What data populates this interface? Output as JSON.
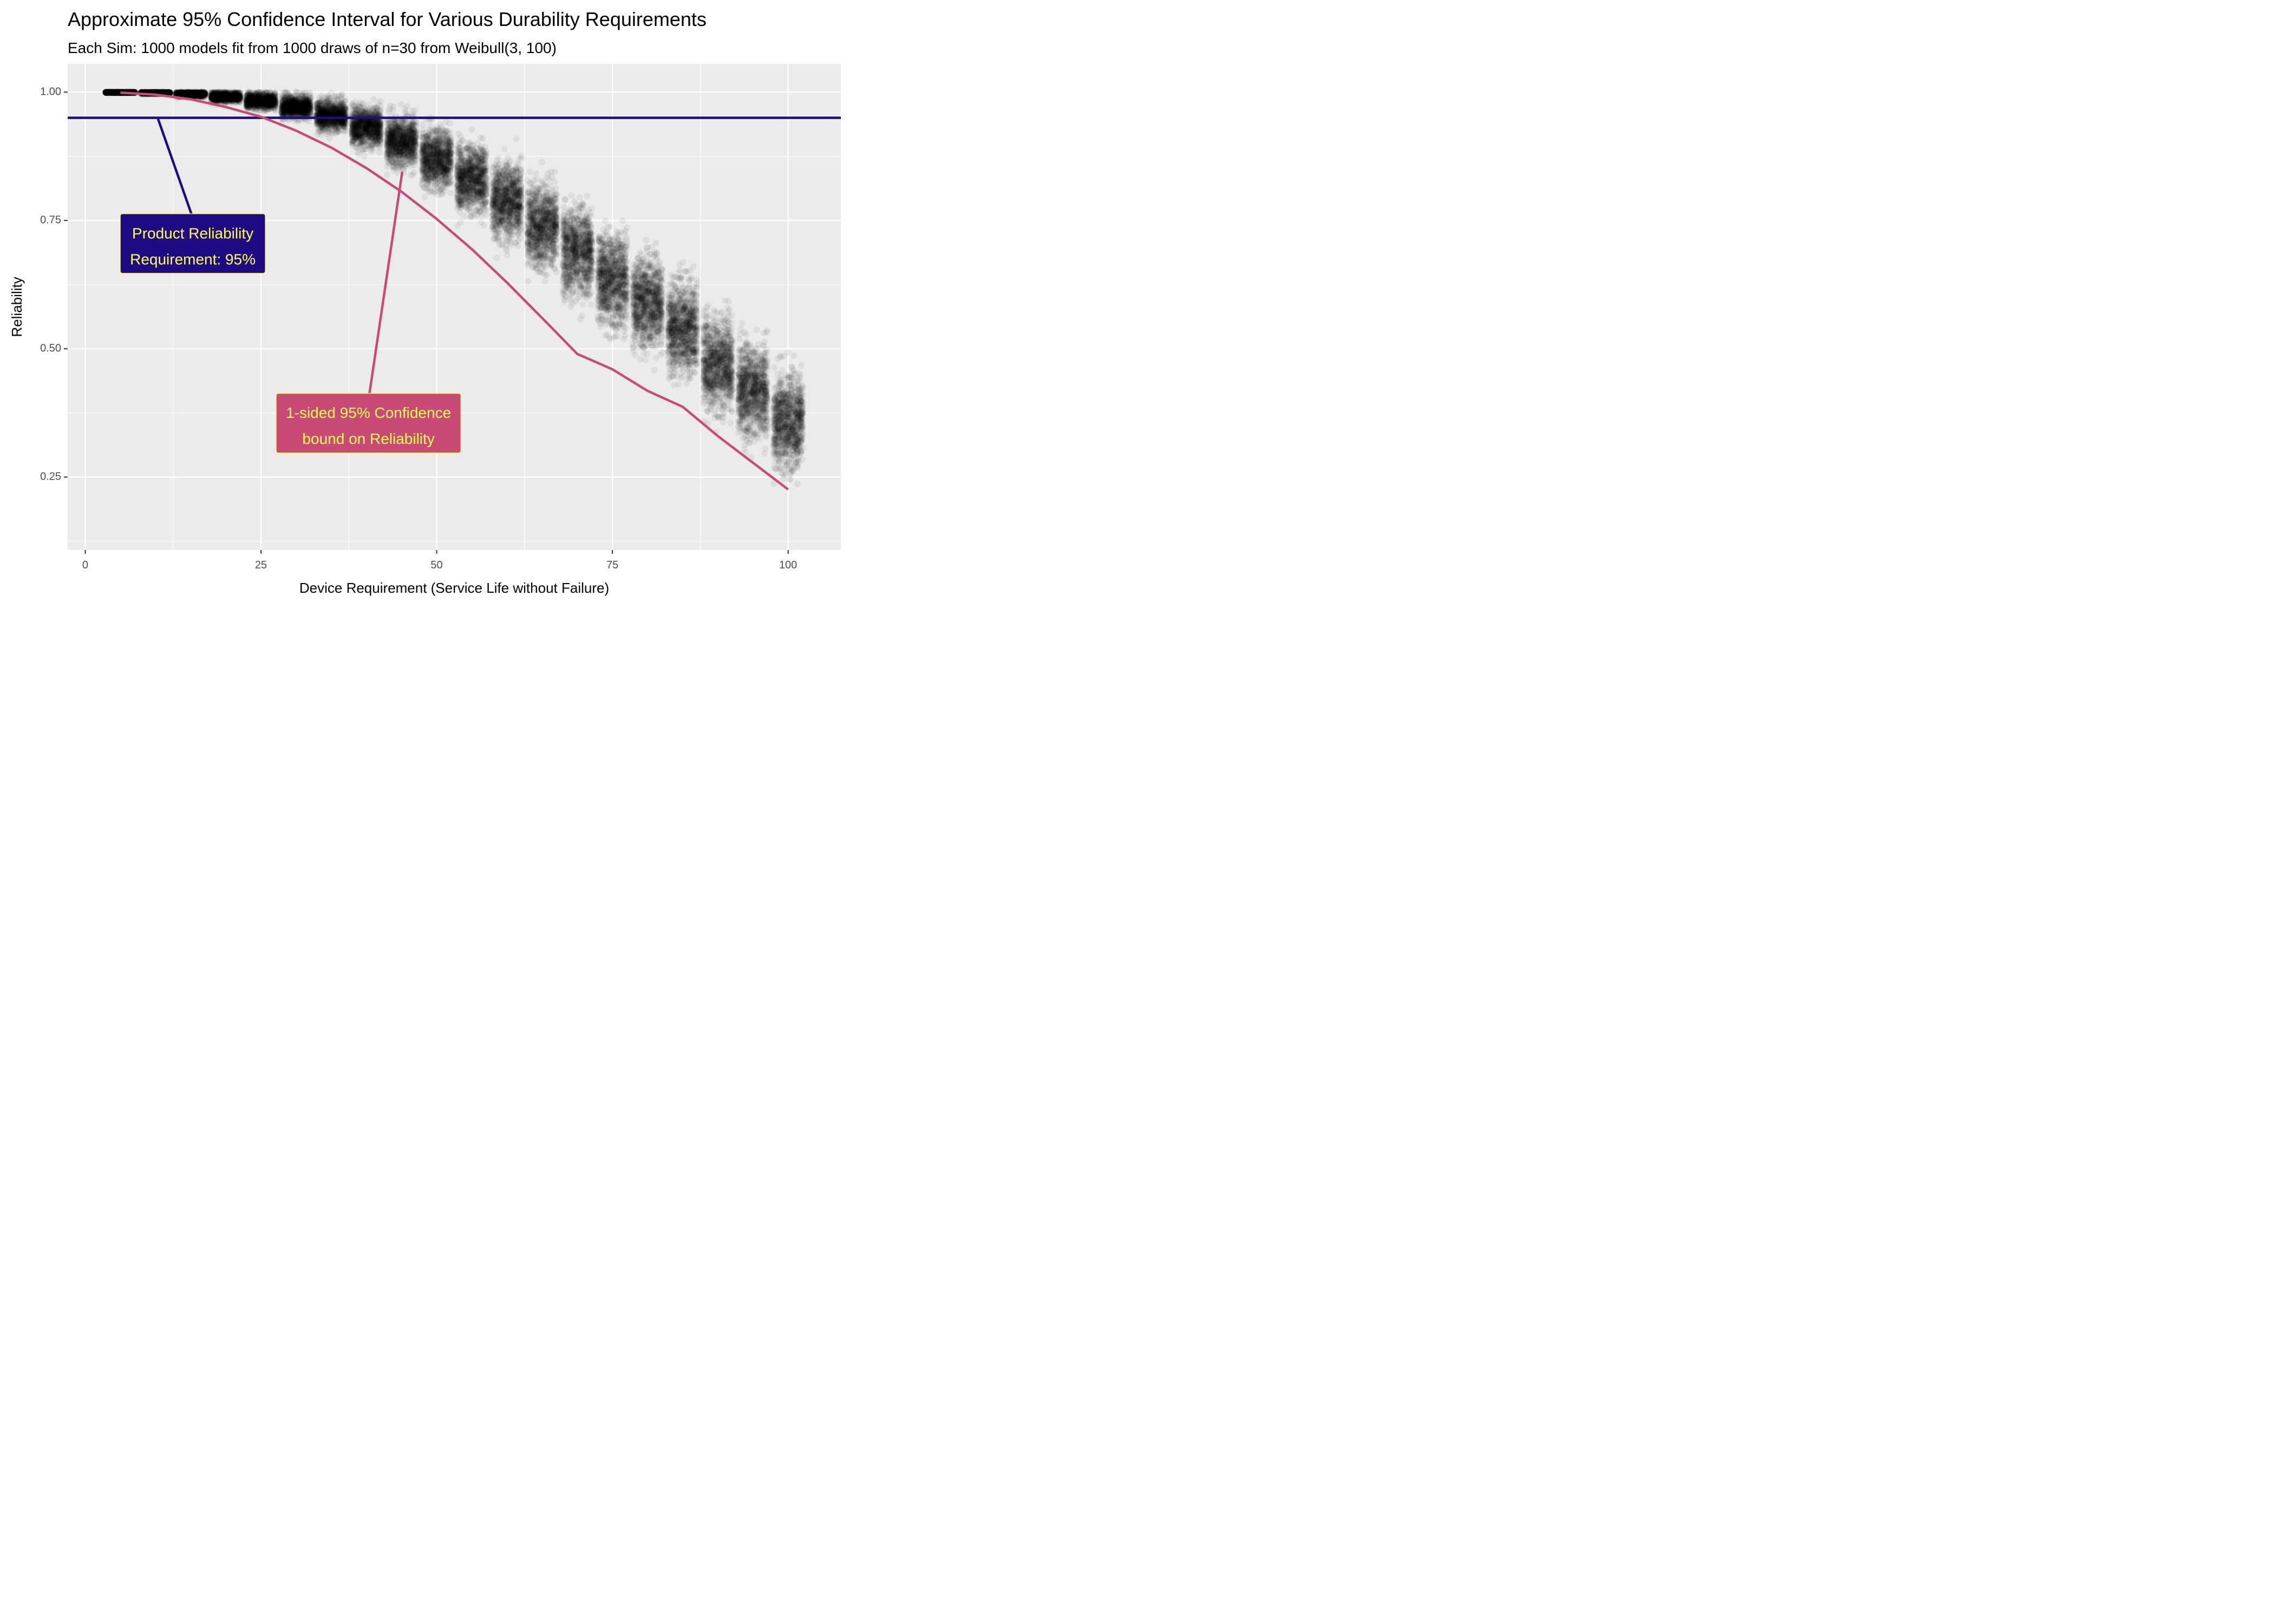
{
  "chart_data": {
    "type": "scatter",
    "title": "Approximate 95% Confidence Interval for Various Durability Requirements",
    "subtitle": "Each Sim: 1000 models fit from 1000 draws of n=30 from Weibull(3, 100)",
    "xlabel": "Device Requirement (Service Life without Failure)",
    "ylabel": "Reliability",
    "xlim": [
      -2.5,
      107.5
    ],
    "ylim": [
      0.108,
      1.055
    ],
    "x_ticks": [
      0,
      25,
      50,
      75,
      100
    ],
    "x_tick_labels": [
      "0",
      "25",
      "50",
      "75",
      "100"
    ],
    "y_ticks": [
      0.25,
      0.5,
      0.75,
      1.0
    ],
    "y_tick_labels": [
      "0.25",
      "0.50",
      "0.75",
      "1.00"
    ],
    "grid": true,
    "sim_clusters": {
      "x": [
        5,
        10,
        15,
        20,
        25,
        30,
        35,
        40,
        45,
        50,
        55,
        60,
        65,
        70,
        75,
        80,
        85,
        90,
        95,
        100
      ],
      "center": [
        1.0,
        0.999,
        0.997,
        0.992,
        0.985,
        0.974,
        0.958,
        0.937,
        0.91,
        0.878,
        0.84,
        0.797,
        0.749,
        0.7,
        0.645,
        0.6,
        0.55,
        0.48,
        0.43,
        0.37
      ],
      "spread": [
        0.001,
        0.002,
        0.005,
        0.009,
        0.014,
        0.02,
        0.027,
        0.035,
        0.043,
        0.05,
        0.057,
        0.063,
        0.068,
        0.072,
        0.076,
        0.078,
        0.08,
        0.081,
        0.081,
        0.08
      ],
      "jitter_half_width": 2.1,
      "draws_per_requirement": 1000,
      "point_color": "#000000",
      "point_alpha": 0.06
    },
    "series": [
      {
        "type": "hline",
        "y": 0.95,
        "color": "#1f0c85"
      },
      {
        "type": "line",
        "color": "#c84b77",
        "x": [
          5,
          10,
          15,
          20,
          25,
          30,
          35,
          40,
          45,
          50,
          55,
          60,
          65,
          70,
          75,
          80,
          85,
          90,
          95,
          100
        ],
        "y": [
          0.999,
          0.995,
          0.986,
          0.971,
          0.952,
          0.925,
          0.892,
          0.852,
          0.806,
          0.753,
          0.694,
          0.629,
          0.56,
          0.49,
          0.46,
          0.418,
          0.387,
          0.33,
          0.278,
          0.226
        ]
      }
    ],
    "annotations": [
      {
        "lines": [
          "Product Reliability",
          "Requirement: 95%"
        ],
        "x": 15.3,
        "y": 0.705,
        "fill": "#1f0c85",
        "text_color": "#ffff4d",
        "leader_from": [
          15.3,
          0.755
        ],
        "leader_to": [
          10.3,
          0.95
        ],
        "leader_color": "#1f0c85"
      },
      {
        "lines": [
          "1-sided 95% Confidence",
          "bound on Reliability"
        ],
        "x": 40.3,
        "y": 0.355,
        "fill": "#c84b77",
        "text_color": "#ffff4d",
        "leader_from": [
          40.3,
          0.4
        ],
        "leader_to": [
          45.1,
          0.845
        ],
        "leader_color": "#c84b77"
      }
    ],
    "panel_color": "#ebebeb",
    "grid_color": "#ffffff"
  }
}
